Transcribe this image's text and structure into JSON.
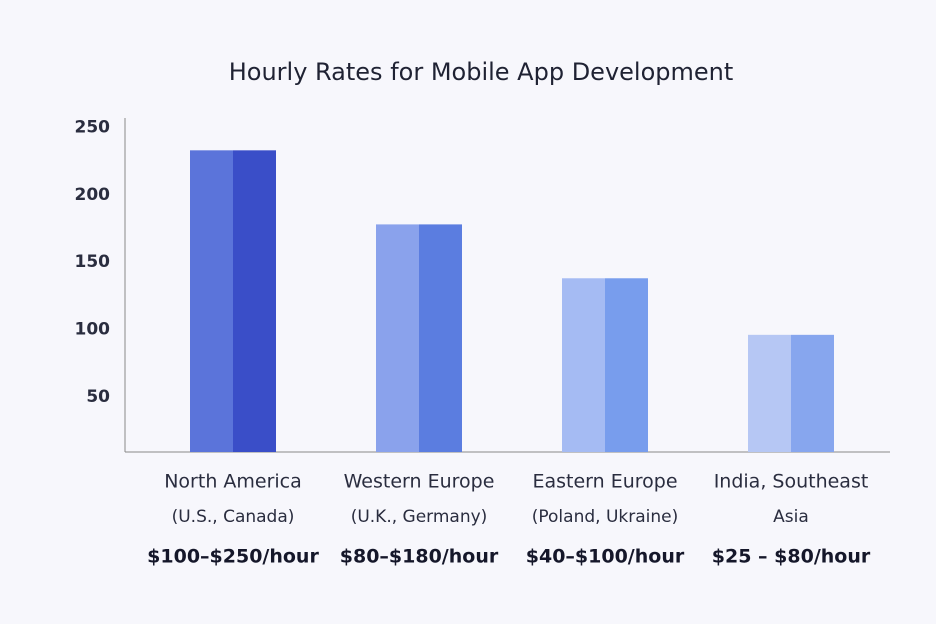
{
  "chart_data": {
    "type": "bar",
    "title": "Hourly Rates for Mobile App Development",
    "categories": [
      [
        "North America",
        "(U.S., Canada)"
      ],
      [
        "Western Europe",
        "(U.K., Germany)"
      ],
      [
        "Eastern Europe",
        "(Poland, Ukraine)"
      ],
      [
        "India, Southeast",
        "Asia"
      ]
    ],
    "values": [
      233,
      178,
      138,
      96
    ],
    "rate_labels": [
      "$100–$250/hour",
      "$80–$180/hour",
      "$40–$100/hour",
      "$25 – $80/hour"
    ],
    "colors": [
      [
        "#5b74da",
        "#3a4ec8"
      ],
      [
        "#8aa2ec",
        "#5b7de0"
      ],
      [
        "#a5bbf3",
        "#789ded"
      ],
      [
        "#b6c7f4",
        "#87a6ee"
      ]
    ],
    "ylim": [
      9,
      257
    ],
    "yticks": [
      50,
      100,
      150,
      200,
      250
    ],
    "grid": false
  }
}
